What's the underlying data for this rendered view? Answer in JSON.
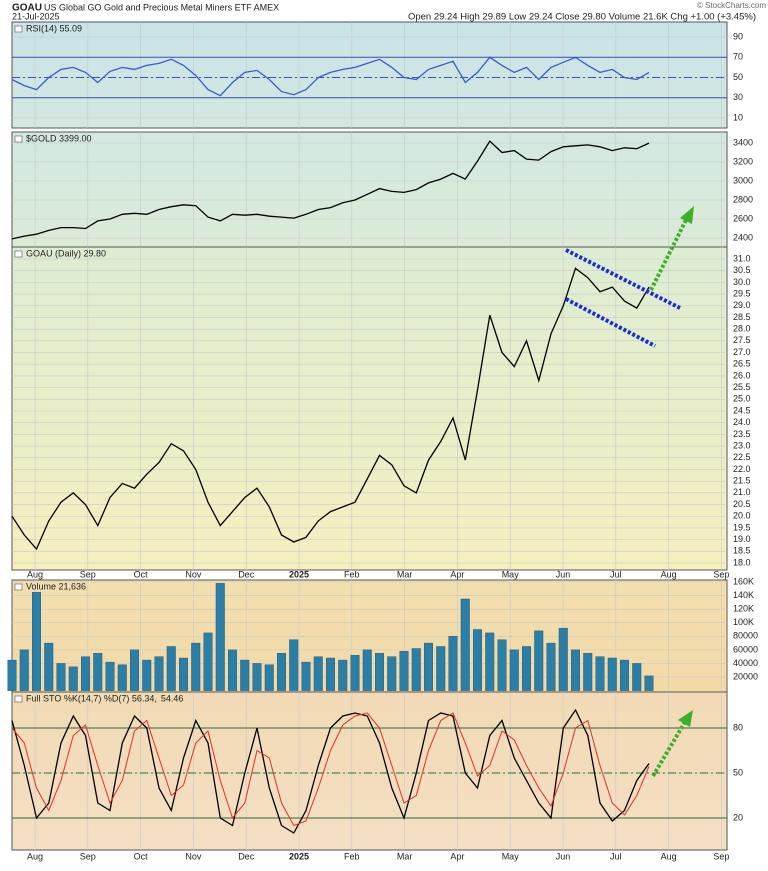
{
  "header": {
    "symbol": "GOAU",
    "name": "US Global GO Gold and Precious Metal Miners ETF  AMEX",
    "date": "21-Jul-2025",
    "quote": "Open 29.24  High 29.89  Low 29.24  Close 29.80  Volume 21.6K  Chg +1.00 (+3.45%)",
    "credit": "© StockCharts.com"
  },
  "months": [
    "Aug",
    "Sep",
    "Oct",
    "Nov",
    "Dec",
    "2025",
    "Feb",
    "Mar",
    "Apr",
    "May",
    "Jun",
    "Jul",
    "Aug",
    "Sep"
  ],
  "chart_data": [
    {
      "type": "line",
      "ylim": [
        0,
        100
      ],
      "yticks": [
        90,
        70,
        50,
        30,
        10
      ],
      "ref_lines": [
        70,
        50,
        30
      ],
      "grid": true,
      "series": [
        {
          "name": "RSI(14) 55.09",
          "color": "#3a5bd0",
          "values": [
            48,
            42,
            38,
            50,
            58,
            60,
            55,
            45,
            56,
            60,
            58,
            62,
            64,
            68,
            62,
            52,
            38,
            32,
            45,
            55,
            57,
            48,
            36,
            33,
            38,
            50,
            55,
            58,
            60,
            64,
            68,
            60,
            50,
            48,
            58,
            62,
            66,
            45,
            55,
            70,
            62,
            55,
            60,
            48,
            60,
            65,
            70,
            62,
            55,
            58,
            50,
            48,
            55.09
          ]
        }
      ]
    },
    {
      "type": "line",
      "ylim": [
        2300,
        3500
      ],
      "yticks": [
        2400,
        2600,
        2800,
        3000,
        3200,
        3400
      ],
      "grid": true,
      "series": [
        {
          "name": "$GOLD 3399.00",
          "color": "#000000",
          "values": [
            2390,
            2420,
            2440,
            2480,
            2510,
            2510,
            2500,
            2580,
            2600,
            2650,
            2660,
            2650,
            2700,
            2730,
            2750,
            2740,
            2620,
            2580,
            2650,
            2640,
            2650,
            2630,
            2620,
            2610,
            2650,
            2700,
            2720,
            2770,
            2800,
            2860,
            2920,
            2890,
            2880,
            2910,
            2980,
            3020,
            3080,
            3020,
            3210,
            3420,
            3300,
            3320,
            3230,
            3220,
            3310,
            3360,
            3370,
            3380,
            3360,
            3320,
            3350,
            3340,
            3399
          ]
        }
      ]
    },
    {
      "type": "line",
      "ylim": [
        17.8,
        31.5
      ],
      "grid": true,
      "yticks": [
        {
          "value": 18,
          "label": "18.0"
        },
        18.5,
        {
          "value": 19,
          "label": "19.0"
        },
        19.5,
        {
          "value": 20,
          "label": "20.0"
        },
        20.5,
        {
          "value": 21,
          "label": "21.0"
        },
        21.5,
        {
          "value": 22,
          "label": "22.0"
        },
        22.5,
        {
          "value": 23,
          "label": "23.0"
        },
        23.5,
        {
          "value": 24,
          "label": "24.0"
        },
        24.5,
        {
          "value": 25,
          "label": "25.0"
        },
        25.5,
        {
          "value": 26,
          "label": "26.0"
        },
        26.5,
        {
          "value": 27,
          "label": "27.0"
        },
        27.5,
        {
          "value": 28,
          "label": "28.0"
        },
        28.5,
        {
          "value": 29,
          "label": "29.0"
        },
        29.5,
        {
          "value": 30,
          "label": "30.0"
        },
        30.5,
        {
          "value": 31,
          "label": "31.0"
        }
      ],
      "series": [
        {
          "name": "GOAU (Daily) 29.80",
          "color": "#000000",
          "values": [
            20.0,
            19.2,
            18.6,
            19.8,
            20.6,
            21.0,
            20.5,
            19.6,
            20.8,
            21.4,
            21.2,
            21.8,
            22.3,
            23.1,
            22.8,
            22.0,
            20.6,
            19.6,
            20.2,
            20.8,
            21.2,
            20.4,
            19.2,
            18.9,
            19.1,
            19.8,
            20.2,
            20.4,
            20.6,
            21.6,
            22.6,
            22.2,
            21.3,
            21.0,
            22.4,
            23.2,
            24.2,
            22.4,
            25.4,
            28.6,
            27.0,
            26.4,
            27.5,
            25.8,
            27.8,
            29.0,
            30.6,
            30.2,
            29.6,
            29.8,
            29.2,
            28.9,
            29.8
          ]
        }
      ]
    },
    {
      "type": "bar",
      "ylim": [
        0,
        160000
      ],
      "grid": true,
      "yticks": [
        20000,
        40000,
        60000,
        80000,
        {
          "value": 100000,
          "label": "100K"
        },
        {
          "value": 120000,
          "label": "120K"
        },
        {
          "value": 140000,
          "label": "140K"
        },
        {
          "value": 160000,
          "label": "160K"
        }
      ],
      "series": [
        {
          "name": "Volume 21,636",
          "color": "#2b7ea6",
          "values": [
            45000,
            60000,
            145000,
            70000,
            40000,
            35000,
            50000,
            55000,
            42000,
            38000,
            60000,
            45000,
            50000,
            65000,
            48000,
            70000,
            85000,
            158000,
            60000,
            45000,
            40000,
            38000,
            55000,
            75000,
            42000,
            50000,
            48000,
            45000,
            52000,
            60000,
            55000,
            50000,
            58000,
            62000,
            70000,
            65000,
            80000,
            135000,
            90000,
            85000,
            75000,
            60000,
            65000,
            88000,
            70000,
            92000,
            60000,
            55000,
            50000,
            48000,
            45000,
            40000,
            21636
          ]
        }
      ]
    },
    {
      "type": "line",
      "ylim": [
        0,
        100
      ],
      "yticks": [
        80,
        50,
        20
      ],
      "ref_lines": [
        80,
        50,
        20
      ],
      "grid": true,
      "series": [
        {
          "name": "Full STO %K(14,7) %D(7) 56.34,",
          "color": "#000000",
          "values": [
            85,
            55,
            20,
            30,
            70,
            88,
            75,
            30,
            25,
            70,
            88,
            80,
            40,
            25,
            60,
            85,
            70,
            20,
            15,
            50,
            80,
            40,
            15,
            10,
            25,
            55,
            80,
            88,
            90,
            88,
            70,
            40,
            20,
            50,
            85,
            90,
            88,
            50,
            40,
            75,
            85,
            60,
            45,
            30,
            20,
            80,
            92,
            75,
            30,
            18,
            25,
            45,
            56.34
          ]
        },
        {
          "name": "54.46",
          "color": "#e0302a",
          "values": [
            80,
            70,
            40,
            25,
            45,
            75,
            82,
            55,
            30,
            45,
            78,
            85,
            60,
            35,
            42,
            70,
            78,
            45,
            20,
            30,
            65,
            60,
            30,
            15,
            18,
            40,
            65,
            82,
            88,
            90,
            80,
            55,
            30,
            35,
            65,
            85,
            90,
            70,
            48,
            55,
            78,
            72,
            55,
            40,
            28,
            50,
            80,
            85,
            55,
            30,
            22,
            35,
            54.46
          ]
        }
      ]
    }
  ]
}
